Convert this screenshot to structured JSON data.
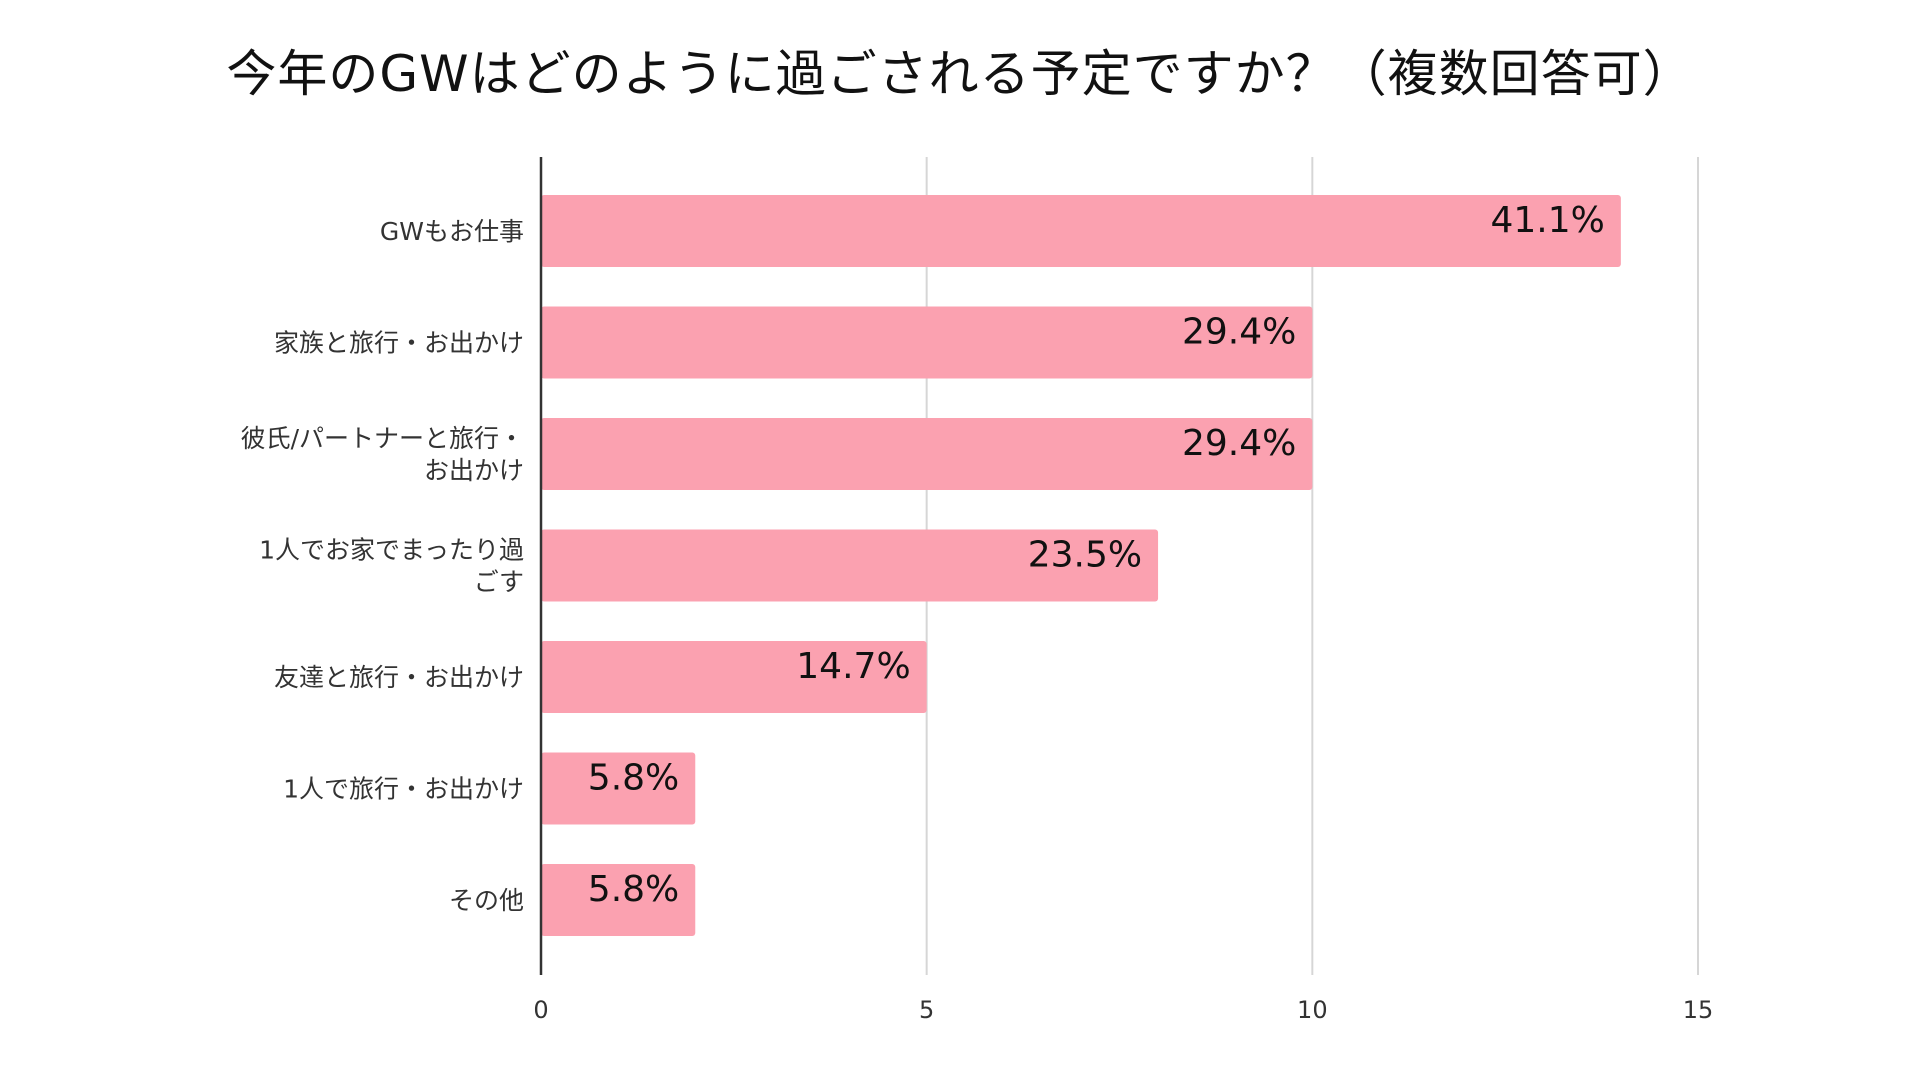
{
  "chart_data": {
    "type": "bar",
    "orientation": "horizontal",
    "title": "今年のGWはどのように過ごされる予定ですか？（複数回答可）",
    "categories": [
      [
        "GWもお仕事"
      ],
      [
        "家族と旅行・お出かけ"
      ],
      [
        "彼氏/パートナーと旅行・",
        "お出かけ"
      ],
      [
        "1人でお家でまったり過",
        "ごす"
      ],
      [
        "友達と旅行・お出かけ"
      ],
      [
        "1人で旅行・お出かけ"
      ],
      [
        "その他"
      ]
    ],
    "values": [
      14,
      10,
      10,
      8,
      5,
      2,
      2
    ],
    "data_labels": [
      "41.1%",
      "29.4%",
      "29.4%",
      "23.5%",
      "14.7%",
      "5.8%",
      "5.8%"
    ],
    "xlim": [
      0,
      15
    ],
    "xticks": [
      0,
      5,
      10,
      15
    ],
    "xtick_labels": [
      "0",
      "5",
      "10",
      "15"
    ],
    "xlabel": "",
    "ylabel": "",
    "grid": true,
    "bar_color": "#fba1b0"
  }
}
